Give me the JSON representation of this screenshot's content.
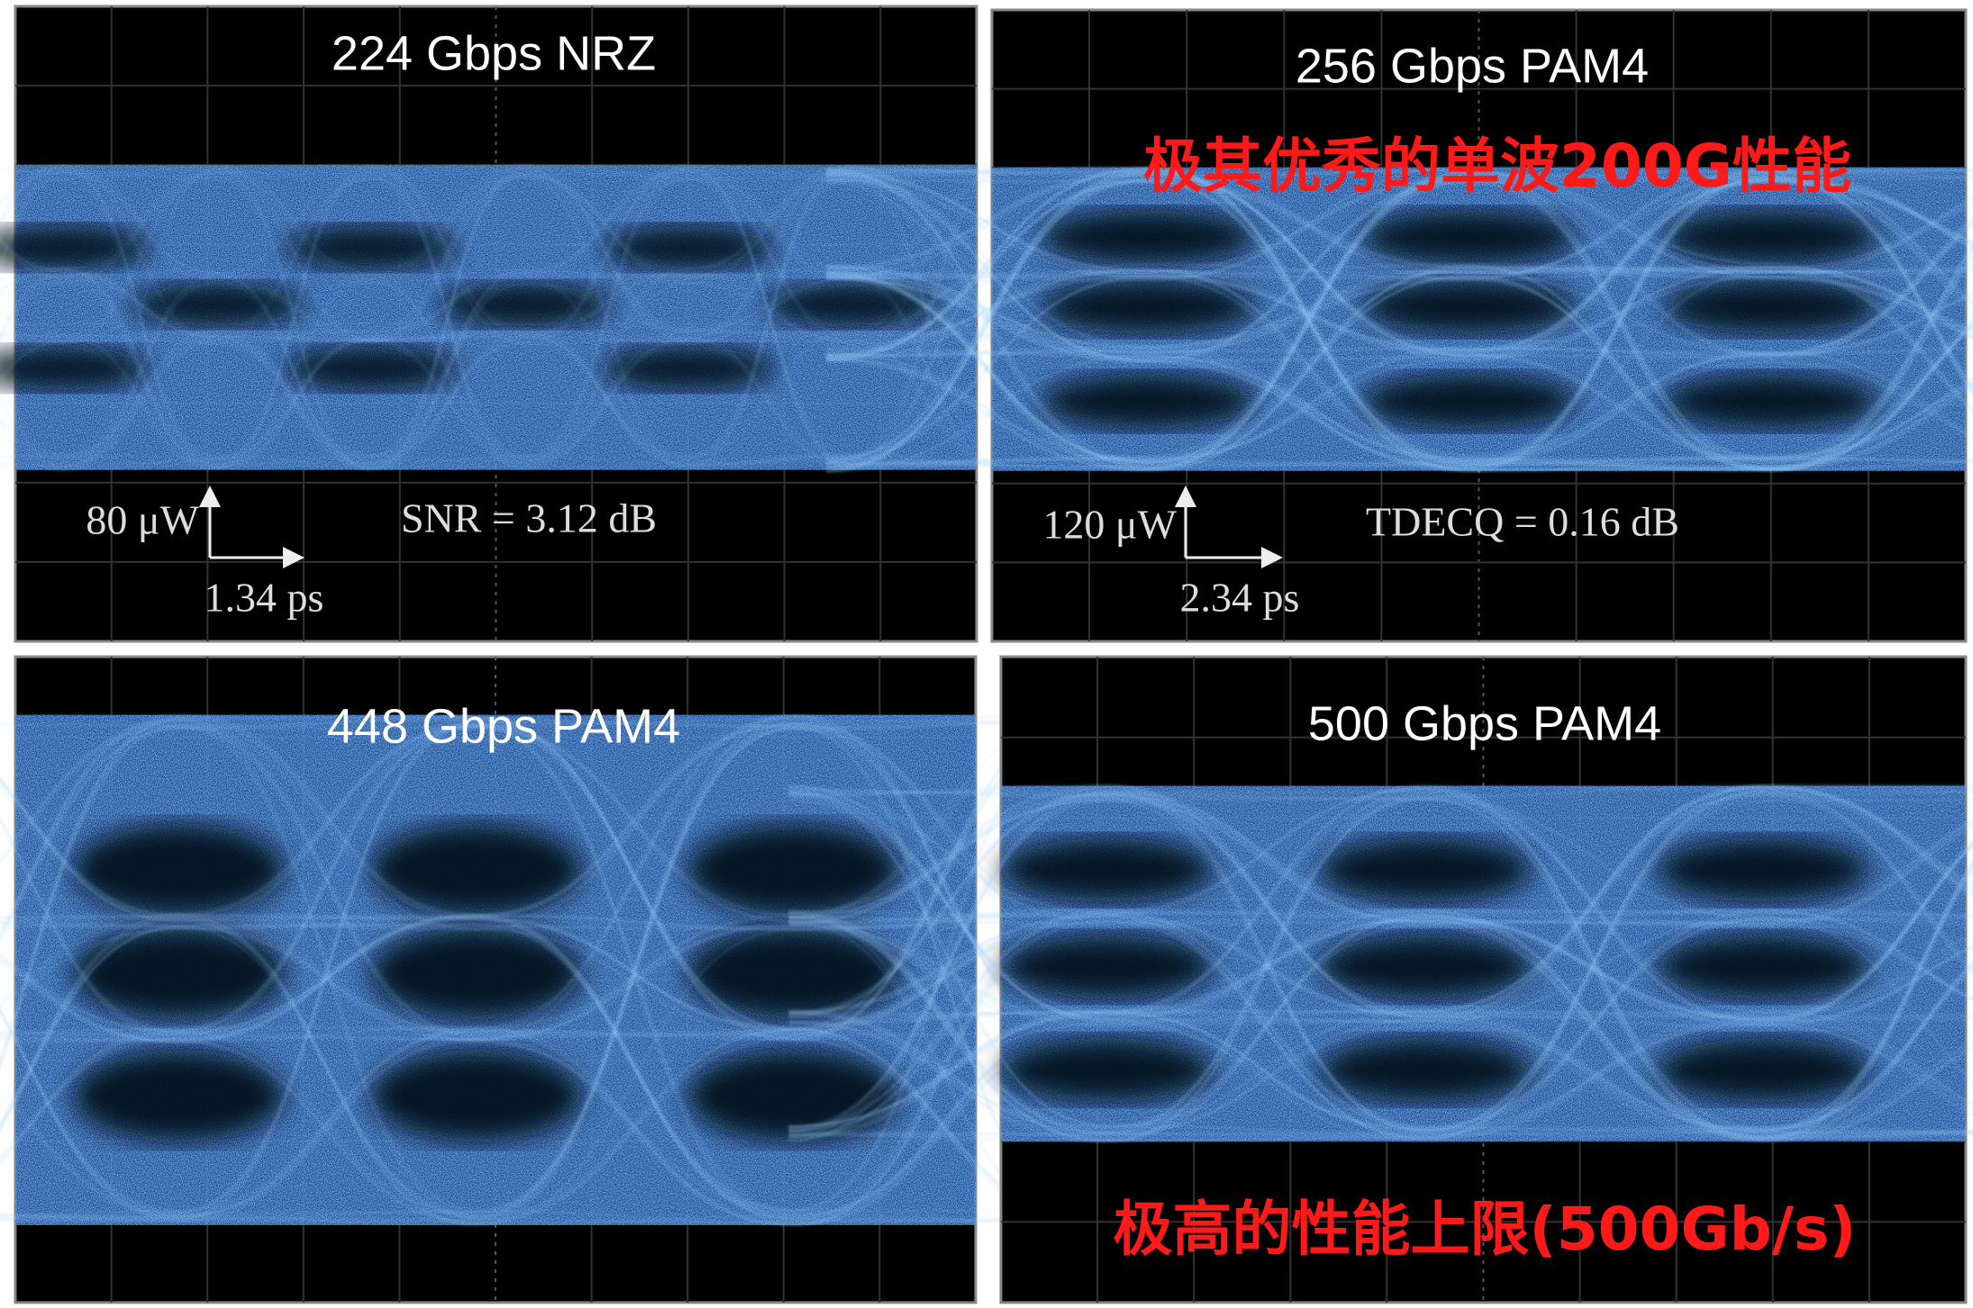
{
  "panels": [
    {
      "title": "224 Gbps NRZ",
      "y_scale": "80 μW",
      "x_scale": "1.34 ps",
      "metric": "SNR = 3.12 dB"
    },
    {
      "title": "256 Gbps PAM4",
      "y_scale": "120 μW",
      "x_scale": "2.34 ps",
      "metric": "TDECQ = 0.16 dB",
      "highlight": "极其优秀的单波200G性能"
    },
    {
      "title": "448 Gbps PAM4"
    },
    {
      "title": "500 Gbps PAM4",
      "highlight": "极高的性能上限(500Gb/s)"
    }
  ]
}
